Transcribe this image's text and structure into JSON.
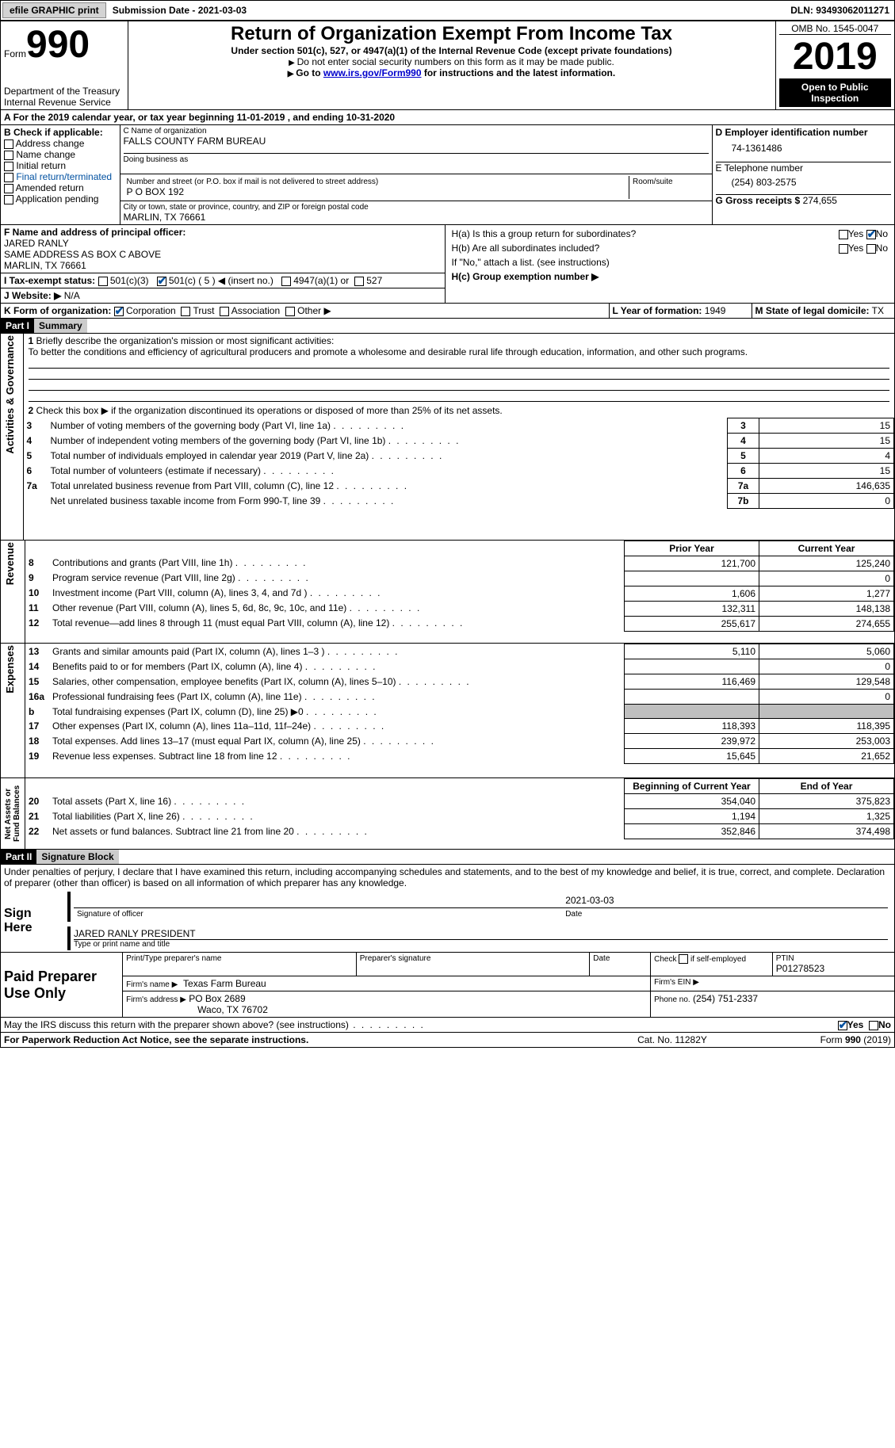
{
  "topbar": {
    "efile_btn": "efile GRAPHIC print",
    "submission_label": "Submission Date - ",
    "submission_date": "2021-03-03",
    "dln_label": "DLN: ",
    "dln": "93493062011271"
  },
  "header": {
    "form_word": "Form",
    "form_num": "990",
    "dept1": "Department of the Treasury",
    "dept2": "Internal Revenue Service",
    "title": "Return of Organization Exempt From Income Tax",
    "subtitle": "Under section 501(c), 527, or 4947(a)(1) of the Internal Revenue Code (except private foundations)",
    "note1": "Do not enter social security numbers on this form as it may be made public.",
    "note2_pre": "Go to ",
    "note2_link": "www.irs.gov/Form990",
    "note2_post": " for instructions and the latest information.",
    "omb": "OMB No. 1545-0047",
    "year": "2019",
    "open": "Open to Public Inspection"
  },
  "secA": {
    "line": "For the 2019 calendar year, or tax year beginning 11-01-2019   , and ending 10-31-2020"
  },
  "secB": {
    "label": "B Check if applicable:",
    "items": [
      "Address change",
      "Name change",
      "Initial return",
      "Final return/terminated",
      "Amended return",
      "Application pending"
    ]
  },
  "secC": {
    "name_label": "C Name of organization",
    "name": "FALLS COUNTY FARM BUREAU",
    "dba_label": "Doing business as",
    "addr_label": "Number and street (or P.O. box if mail is not delivered to street address)",
    "room_label": "Room/suite",
    "addr": "P O BOX 192",
    "city_label": "City or town, state or province, country, and ZIP or foreign postal code",
    "city": "MARLIN, TX  76661"
  },
  "secD": {
    "label": "D Employer identification number",
    "val": "74-1361486"
  },
  "secE": {
    "label": "E Telephone number",
    "val": "(254) 803-2575"
  },
  "secG": {
    "label": "G Gross receipts $",
    "val": "274,655"
  },
  "secF": {
    "label": "F  Name and address of principal officer:",
    "name": "JARED RANLY",
    "addr": "SAME ADDRESS AS BOX C ABOVE",
    "city": "MARLIN, TX  76661"
  },
  "secH": {
    "ha": "H(a)  Is this a group return for subordinates?",
    "hb": "H(b)  Are all subordinates included?",
    "hb_note": "If \"No,\" attach a list. (see instructions)",
    "hc": "H(c)  Group exemption number ▶",
    "yes": "Yes",
    "no": "No"
  },
  "secI": {
    "label": "I  Tax-exempt status:",
    "opt1": "501(c)(3)",
    "opt2": "501(c) ( 5 ) ◀ (insert no.)",
    "opt3": "4947(a)(1) or",
    "opt4": "527"
  },
  "secJ": {
    "label": "J  Website: ▶",
    "val": "N/A"
  },
  "secK": {
    "label": "K Form of organization:",
    "opts": [
      "Corporation",
      "Trust",
      "Association",
      "Other ▶"
    ]
  },
  "secL": {
    "label": "L Year of formation:",
    "val": "1949"
  },
  "secM": {
    "label": "M State of legal domicile:",
    "val": "TX"
  },
  "part1": {
    "hdr": "Part I",
    "title": "Summary",
    "q1_label": "1",
    "q1": "Briefly describe the organization's mission or most significant activities:",
    "q1_text": "To better the conditions and efficiency of agricultural producers and promote a wholesome and desirable rural life through education, information, and other such programs.",
    "q2": "Check this box ▶        if the organization discontinued its operations or disposed of more than 25% of its net assets.",
    "vlabels": {
      "gov": "Activities & Governance",
      "rev": "Revenue",
      "exp": "Expenses",
      "net": "Net Assets or Fund Balances"
    },
    "rows_top": [
      {
        "n": "3",
        "t": "Number of voting members of the governing body (Part VI, line 1a)",
        "rn": "3",
        "v": "15"
      },
      {
        "n": "4",
        "t": "Number of independent voting members of the governing body (Part VI, line 1b)",
        "rn": "4",
        "v": "15"
      },
      {
        "n": "5",
        "t": "Total number of individuals employed in calendar year 2019 (Part V, line 2a)",
        "rn": "5",
        "v": "4"
      },
      {
        "n": "6",
        "t": "Total number of volunteers (estimate if necessary)",
        "rn": "6",
        "v": "15"
      },
      {
        "n": "7a",
        "t": "Total unrelated business revenue from Part VIII, column (C), line 12",
        "rn": "7a",
        "v": "146,635"
      },
      {
        "n": "",
        "t": "Net unrelated business taxable income from Form 990-T, line 39",
        "rn": "7b",
        "v": "0"
      }
    ],
    "col_hdr": {
      "prior": "Prior Year",
      "curr": "Current Year"
    },
    "rows_rev": [
      {
        "n": "8",
        "t": "Contributions and grants (Part VIII, line 1h)",
        "p": "121,700",
        "c": "125,240"
      },
      {
        "n": "9",
        "t": "Program service revenue (Part VIII, line 2g)",
        "p": "",
        "c": "0"
      },
      {
        "n": "10",
        "t": "Investment income (Part VIII, column (A), lines 3, 4, and 7d )",
        "p": "1,606",
        "c": "1,277"
      },
      {
        "n": "11",
        "t": "Other revenue (Part VIII, column (A), lines 5, 6d, 8c, 9c, 10c, and 11e)",
        "p": "132,311",
        "c": "148,138"
      },
      {
        "n": "12",
        "t": "Total revenue—add lines 8 through 11 (must equal Part VIII, column (A), line 12)",
        "p": "255,617",
        "c": "274,655"
      }
    ],
    "rows_exp": [
      {
        "n": "13",
        "t": "Grants and similar amounts paid (Part IX, column (A), lines 1–3 )",
        "p": "5,110",
        "c": "5,060"
      },
      {
        "n": "14",
        "t": "Benefits paid to or for members (Part IX, column (A), line 4)",
        "p": "",
        "c": "0"
      },
      {
        "n": "15",
        "t": "Salaries, other compensation, employee benefits (Part IX, column (A), lines 5–10)",
        "p": "116,469",
        "c": "129,548"
      },
      {
        "n": "16a",
        "t": "Professional fundraising fees (Part IX, column (A), line 11e)",
        "p": "",
        "c": "0"
      },
      {
        "n": "b",
        "t": "Total fundraising expenses (Part IX, column (D), line 25) ▶0",
        "p": "GREY",
        "c": "GREY"
      },
      {
        "n": "17",
        "t": "Other expenses (Part IX, column (A), lines 11a–11d, 11f–24e)",
        "p": "118,393",
        "c": "118,395"
      },
      {
        "n": "18",
        "t": "Total expenses. Add lines 13–17 (must equal Part IX, column (A), line 25)",
        "p": "239,972",
        "c": "253,003"
      },
      {
        "n": "19",
        "t": "Revenue less expenses. Subtract line 18 from line 12",
        "p": "15,645",
        "c": "21,652"
      }
    ],
    "col_hdr2": {
      "beg": "Beginning of Current Year",
      "end": "End of Year"
    },
    "rows_net": [
      {
        "n": "20",
        "t": "Total assets (Part X, line 16)",
        "p": "354,040",
        "c": "375,823"
      },
      {
        "n": "21",
        "t": "Total liabilities (Part X, line 26)",
        "p": "1,194",
        "c": "1,325"
      },
      {
        "n": "22",
        "t": "Net assets or fund balances. Subtract line 21 from line 20",
        "p": "352,846",
        "c": "374,498"
      }
    ]
  },
  "part2": {
    "hdr": "Part II",
    "title": "Signature Block",
    "decl": "Under penalties of perjury, I declare that I have examined this return, including accompanying schedules and statements, and to the best of my knowledge and belief, it is true, correct, and complete. Declaration of preparer (other than officer) is based on all information of which preparer has any knowledge.",
    "sign_here": "Sign Here",
    "sig_off": "Signature of officer",
    "date": "Date",
    "sig_date": "2021-03-03",
    "officer": "JARED RANLY PRESIDENT",
    "type_name": "Type or print name and title",
    "paid": "Paid Preparer Use Only",
    "prep_name_lbl": "Print/Type preparer's name",
    "prep_sig_lbl": "Preparer's signature",
    "date_lbl": "Date",
    "check_lbl": "Check         if self-employed",
    "ptin_lbl": "PTIN",
    "ptin": "P01278523",
    "firm_name_lbl": "Firm's name   ▶",
    "firm_name": "Texas Farm Bureau",
    "firm_ein_lbl": "Firm's EIN ▶",
    "firm_addr_lbl": "Firm's address ▶",
    "firm_addr": "PO Box 2689",
    "firm_city": "Waco, TX  76702",
    "phone_lbl": "Phone no.",
    "phone": "(254) 751-2337",
    "discuss": "May the IRS discuss this return with the preparer shown above? (see instructions)",
    "yes": "Yes",
    "no": "No"
  },
  "footer": {
    "pra": "For Paperwork Reduction Act Notice, see the separate instructions.",
    "cat": "Cat. No. 11282Y",
    "form": "Form 990 (2019)"
  }
}
